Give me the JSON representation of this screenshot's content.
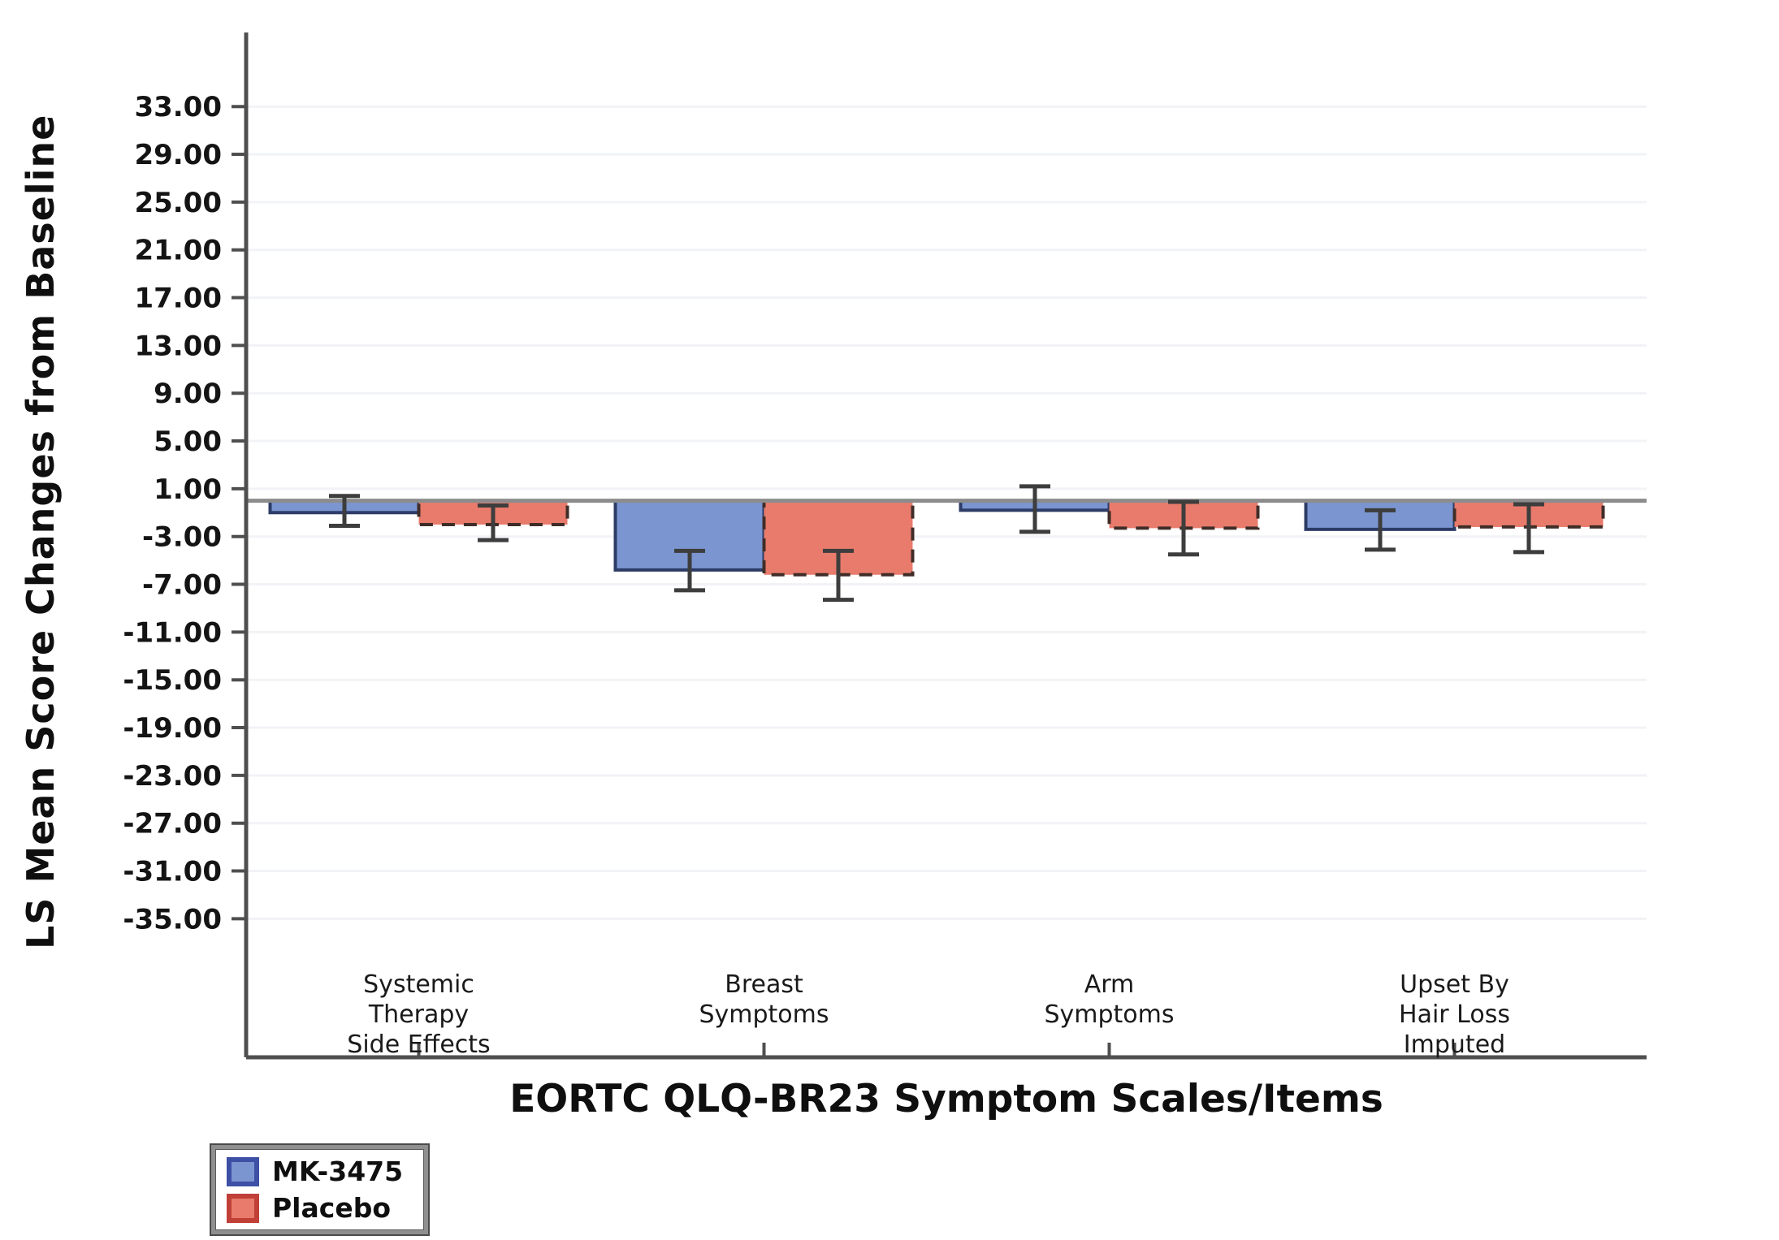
{
  "chart_data": {
    "type": "bar",
    "title": "",
    "xlabel": "EORTC QLQ-BR23 Symptom Scales/Items",
    "ylabel": "LS Mean Score Changes from Baseline",
    "categories": [
      {
        "slug": "systemic-therapy-side-effects",
        "lines": [
          "Systemic",
          "Therapy",
          "Side Effects"
        ]
      },
      {
        "slug": "breast-symptoms",
        "lines": [
          "Breast",
          "Symptoms"
        ]
      },
      {
        "slug": "arm-symptoms",
        "lines": [
          "Arm",
          "Symptoms"
        ]
      },
      {
        "slug": "upset-by-hair-loss-imputed",
        "lines": [
          "Upset By",
          "Hair Loss",
          "Imputed"
        ]
      }
    ],
    "series": [
      {
        "name": "MK-3475",
        "slug": "mk-3475",
        "fill": "#7b95d1",
        "border": "#2d3c66",
        "border_dash": "",
        "swatch_border": "#3d50a5",
        "values": [
          -1.0,
          -5.8,
          -0.8,
          -2.4
        ],
        "ci_upper": [
          0.4,
          -4.2,
          1.2,
          -0.8
        ],
        "ci_lower": [
          -2.1,
          -7.5,
          -2.6,
          -4.1
        ]
      },
      {
        "name": "Placebo",
        "slug": "placebo",
        "fill": "#e87b6c",
        "border": "#402d28",
        "border_dash": "16 11",
        "swatch_border": "#c04038",
        "values": [
          -2.0,
          -6.2,
          -2.3,
          -2.2
        ],
        "ci_upper": [
          -0.4,
          -4.2,
          -0.1,
          -0.3
        ],
        "ci_lower": [
          -3.3,
          -8.3,
          -4.5,
          -4.3
        ]
      }
    ],
    "yticks": [
      33,
      29,
      25,
      21,
      17,
      13,
      9,
      5,
      1,
      -3,
      -7,
      -11,
      -15,
      -19,
      -23,
      -27,
      -31,
      -35
    ],
    "ytick_labels": [
      "33.00",
      "29.00",
      "25.00",
      "21.00",
      "17.00",
      "13.00",
      "9.00",
      "5.00",
      "1.00",
      "-3.00",
      "-7.00",
      "-11.00",
      "-15.00",
      "-19.00",
      "-23.00",
      "-27.00",
      "-31.00",
      "-35.00"
    ],
    "ylim": [
      -46.6,
      39.2
    ],
    "error_bars": true,
    "grid": true,
    "legend_position": "bottom-left",
    "colors": {
      "grid": "#f2f3f6",
      "zero_line": "#8c8c8c",
      "axis": "#4f4f4f",
      "error_bar": "#3d3d3d",
      "text": "#141414"
    }
  }
}
